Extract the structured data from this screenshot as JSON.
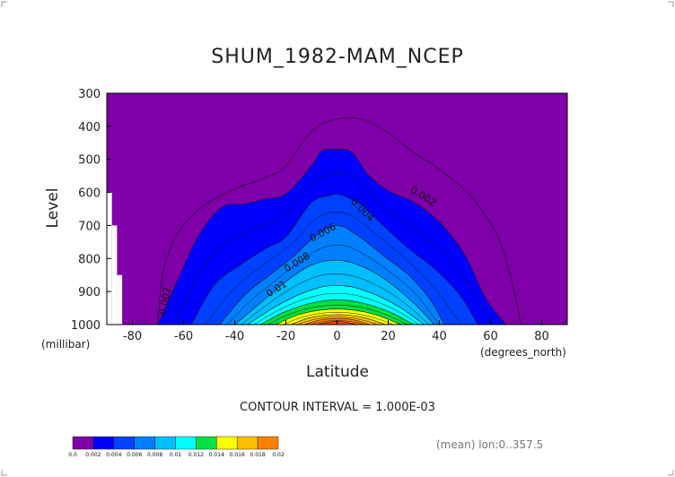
{
  "chart_data": {
    "type": "contour",
    "title": "SHUM_1982-MAM_NCEP",
    "xlabel": "Latitude",
    "x_unit": "(degrees_north)",
    "ylabel": "Level",
    "y_unit": "(millibar)",
    "xlim": [
      -90,
      90
    ],
    "ylim": [
      1000,
      300
    ],
    "x_ticks": [
      "-80",
      "-60",
      "-40",
      "-20",
      "0",
      "20",
      "40",
      "60",
      "80"
    ],
    "x_tick_values": [
      -80,
      -60,
      -40,
      -20,
      0,
      20,
      40,
      60,
      80
    ],
    "y_ticks": [
      "300",
      "400",
      "500",
      "600",
      "700",
      "800",
      "900",
      "1000"
    ],
    "y_tick_values": [
      300,
      400,
      500,
      600,
      700,
      800,
      900,
      1000
    ],
    "contour_interval_text": "CONTOUR INTERVAL = 1.000E-03",
    "footnote": "(mean) lon:0..357.5",
    "contour_levels": [
      0.002,
      0.003,
      0.004,
      0.005,
      0.006,
      0.007,
      0.008,
      0.009,
      0.01,
      0.011,
      0.012,
      0.013,
      0.014,
      0.015,
      0.016,
      0.017,
      0.018
    ],
    "contour_labels": [
      {
        "text": "0.002",
        "lat": 33,
        "lev": 620,
        "angle": 32
      },
      {
        "text": "0.004",
        "lat": 9,
        "lev": 660,
        "angle": 45
      },
      {
        "text": "0.006",
        "lat": -5,
        "lev": 730,
        "angle": -28
      },
      {
        "text": "0.008",
        "lat": -15,
        "lev": 820,
        "angle": -32
      },
      {
        "text": "0.01",
        "lat": -23,
        "lev": 900,
        "angle": -32
      },
      {
        "text": "0.002",
        "lat": -66,
        "lev": 930,
        "angle": -80
      }
    ],
    "colorbar": {
      "colors": [
        "#7f00a8",
        "#0000ff",
        "#0040ff",
        "#0080ff",
        "#00bfff",
        "#00ffff",
        "#00e040",
        "#ffff00",
        "#ffbf00",
        "#ff8000",
        "#ff4000",
        "#ff0000"
      ],
      "labels": [
        "0.0",
        "0.002",
        "0.004",
        "0.006",
        "0.008",
        "0.01",
        "0.012",
        "0.014",
        "0.016",
        "0.018",
        "0.02"
      ]
    },
    "fill_levels": [
      {
        "min": 0.002,
        "color": "#0000ff",
        "lats": [
          -70,
          -62,
          -54,
          -45,
          -36,
          -28,
          -20,
          -10,
          -6,
          0,
          6,
          12,
          20,
          30,
          40,
          50,
          58,
          66
        ],
        "levs": [
          1000,
          860,
          730,
          645,
          635,
          620,
          605,
          520,
          475,
          470,
          480,
          545,
          595,
          630,
          690,
          790,
          920,
          1000
        ]
      },
      {
        "min": 0.004,
        "color": "#0040ff",
        "lats": [
          -57,
          -48,
          -38,
          -28,
          -20,
          -10,
          -3,
          0,
          4,
          10,
          18,
          28,
          38,
          48,
          55
        ],
        "levs": [
          1000,
          880,
          820,
          770,
          735,
          630,
          610,
          605,
          615,
          640,
          700,
          770,
          830,
          910,
          1000
        ]
      },
      {
        "min": 0.006,
        "color": "#0080ff",
        "lats": [
          -46,
          -36,
          -28,
          -18,
          -8,
          0,
          8,
          18,
          28,
          36,
          42
        ],
        "levs": [
          1000,
          910,
          860,
          800,
          730,
          700,
          730,
          790,
          850,
          920,
          1000
        ]
      },
      {
        "min": 0.008,
        "color": "#00bfff",
        "lats": [
          -40,
          -30,
          -20,
          -10,
          0,
          10,
          20,
          30,
          38
        ],
        "levs": [
          1000,
          935,
          870,
          820,
          805,
          825,
          870,
          935,
          1000
        ]
      },
      {
        "min": 0.01,
        "color": "#00ffff",
        "lats": [
          -35,
          -25,
          -15,
          -5,
          5,
          15,
          25,
          34
        ],
        "levs": [
          1000,
          950,
          910,
          885,
          885,
          910,
          950,
          1000
        ]
      },
      {
        "min": 0.012,
        "color": "#00e040",
        "lats": [
          -30,
          -20,
          -10,
          0,
          10,
          20,
          30
        ],
        "levs": [
          1000,
          960,
          935,
          925,
          935,
          960,
          1000
        ]
      },
      {
        "min": 0.014,
        "color": "#ffff00",
        "lats": [
          -24,
          -15,
          -5,
          5,
          15,
          25
        ],
        "levs": [
          1000,
          970,
          955,
          955,
          970,
          1000
        ]
      },
      {
        "min": 0.016,
        "color": "#ffbf00",
        "lats": [
          -18,
          -10,
          0,
          10,
          19
        ],
        "levs": [
          1000,
          978,
          970,
          978,
          1000
        ]
      },
      {
        "min": 0.017,
        "color": "#ff8000",
        "lats": [
          -13,
          -5,
          5,
          13
        ],
        "levs": [
          1000,
          984,
          984,
          1000
        ]
      },
      {
        "min": 0.018,
        "color": "#ff4000",
        "lats": [
          -8,
          0,
          8
        ],
        "levs": [
          1000,
          990,
          1000
        ]
      }
    ],
    "outer_contour": {
      "level": 0.002,
      "lats": [
        -70,
        -68,
        -62,
        -52,
        -40,
        -28,
        -20,
        -10,
        0,
        10,
        20,
        30,
        40,
        52,
        62,
        68,
        72
      ],
      "levs": [
        1000,
        840,
        720,
        640,
        590,
        555,
        520,
        415,
        378,
        380,
        420,
        480,
        530,
        610,
        720,
        860,
        1000
      ]
    },
    "terrain_mask": [
      {
        "lat0": -90,
        "lat1": -88,
        "lev0": 600,
        "lev1": 1000
      },
      {
        "lat0": -88,
        "lat1": -86,
        "lev0": 700,
        "lev1": 1000
      },
      {
        "lat0": -86,
        "lat1": -84,
        "lev0": 850,
        "lev1": 1000
      }
    ]
  }
}
